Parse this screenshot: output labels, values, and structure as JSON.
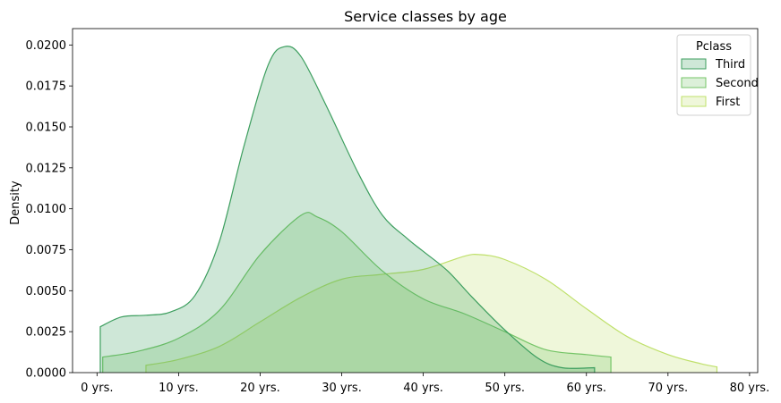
{
  "chart_data": {
    "type": "area",
    "title": "Service classes by age",
    "xlabel": "",
    "ylabel": "Density",
    "xlim": [
      -3,
      81
    ],
    "ylim": [
      0,
      0.021
    ],
    "x_ticks": [
      {
        "value": 0,
        "label": "0 yrs."
      },
      {
        "value": 10,
        "label": "10 yrs."
      },
      {
        "value": 20,
        "label": "20 yrs."
      },
      {
        "value": 30,
        "label": "30 yrs."
      },
      {
        "value": 40,
        "label": "40 yrs."
      },
      {
        "value": 50,
        "label": "50 yrs."
      },
      {
        "value": 60,
        "label": "60 yrs."
      },
      {
        "value": 70,
        "label": "70 yrs."
      },
      {
        "value": 80,
        "label": "80 yrs."
      }
    ],
    "y_ticks": [
      {
        "value": 0,
        "label": "0.0000"
      },
      {
        "value": 0.0025,
        "label": "0.0025"
      },
      {
        "value": 0.005,
        "label": "0.0050"
      },
      {
        "value": 0.0075,
        "label": "0.0075"
      },
      {
        "value": 0.01,
        "label": "0.0100"
      },
      {
        "value": 0.0125,
        "label": "0.0125"
      },
      {
        "value": 0.015,
        "label": "0.0150"
      },
      {
        "value": 0.0175,
        "label": "0.0175"
      },
      {
        "value": 0.02,
        "label": "0.0200"
      }
    ],
    "grid": false,
    "legend": {
      "title": "Pclass",
      "position": "top-right"
    },
    "series": [
      {
        "name": "First",
        "color": "#bfe06a",
        "points": [
          [
            6,
            0.00045
          ],
          [
            10,
            0.0008
          ],
          [
            15,
            0.0016
          ],
          [
            20,
            0.0031
          ],
          [
            25,
            0.0046
          ],
          [
            30,
            0.0057
          ],
          [
            35,
            0.006
          ],
          [
            40,
            0.0063
          ],
          [
            45,
            0.0071
          ],
          [
            47,
            0.0072
          ],
          [
            50,
            0.0069
          ],
          [
            55,
            0.0057
          ],
          [
            60,
            0.0039
          ],
          [
            65,
            0.0022
          ],
          [
            70,
            0.0011
          ],
          [
            74,
            0.00055
          ],
          [
            76,
            0.00035
          ]
        ]
      },
      {
        "name": "Second",
        "color": "#74c466",
        "points": [
          [
            0.7,
            0.00095
          ],
          [
            5,
            0.0013
          ],
          [
            10,
            0.0021
          ],
          [
            15,
            0.0038
          ],
          [
            20,
            0.0072
          ],
          [
            25,
            0.0096
          ],
          [
            27,
            0.0095
          ],
          [
            30,
            0.0086
          ],
          [
            35,
            0.0062
          ],
          [
            40,
            0.0045
          ],
          [
            45,
            0.0036
          ],
          [
            50,
            0.0025
          ],
          [
            55,
            0.0014
          ],
          [
            60,
            0.0011
          ],
          [
            63,
            0.00095
          ]
        ]
      },
      {
        "name": "Third",
        "color": "#3c9e5e",
        "points": [
          [
            0.4,
            0.0028
          ],
          [
            3,
            0.0034
          ],
          [
            6,
            0.0035
          ],
          [
            9,
            0.0037
          ],
          [
            12,
            0.0047
          ],
          [
            15,
            0.008
          ],
          [
            18,
            0.0138
          ],
          [
            21,
            0.0188
          ],
          [
            23,
            0.0199
          ],
          [
            25,
            0.0193
          ],
          [
            28,
            0.0164
          ],
          [
            32,
            0.0122
          ],
          [
            35,
            0.0096
          ],
          [
            38,
            0.0082
          ],
          [
            40,
            0.0074
          ],
          [
            43,
            0.0062
          ],
          [
            46,
            0.0046
          ],
          [
            50,
            0.0026
          ],
          [
            54,
            0.0009
          ],
          [
            57,
            0.0003
          ],
          [
            61,
            0.0003
          ]
        ]
      }
    ]
  }
}
